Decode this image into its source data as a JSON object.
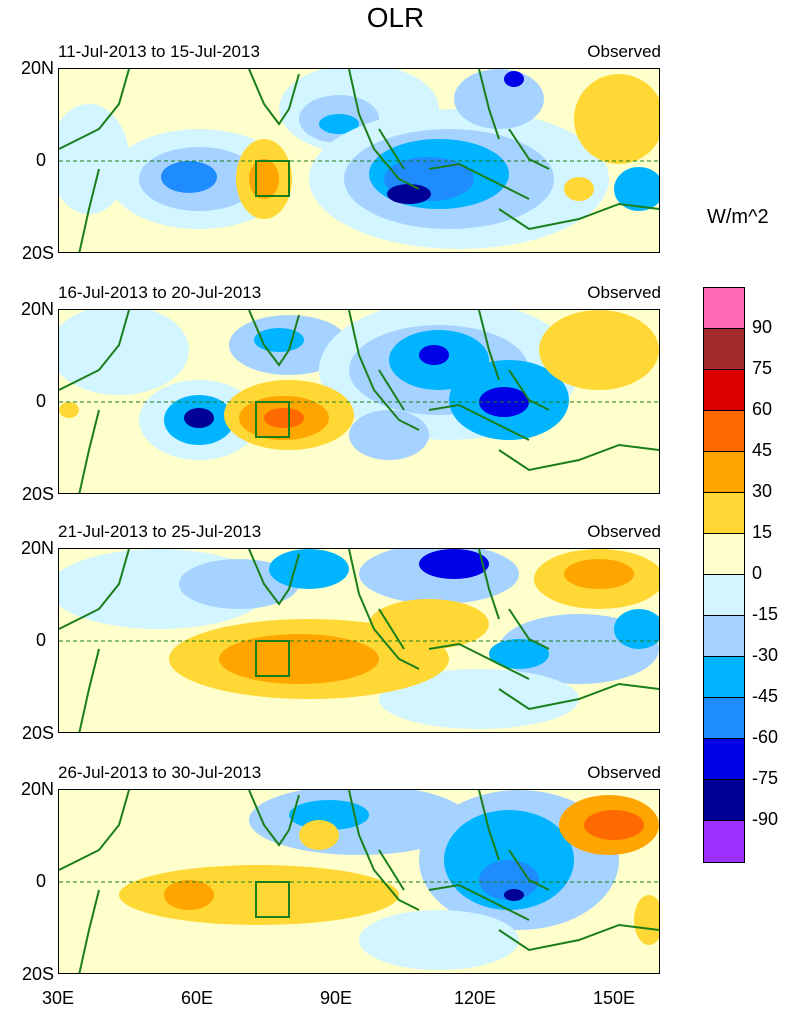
{
  "title": "OLR",
  "units": "W/m^2",
  "lat_labels": [
    "20N",
    "0",
    "20S"
  ],
  "lon_labels": [
    "30E",
    "60E",
    "90E",
    "120E",
    "150E"
  ],
  "panels": [
    {
      "period": "11-Jul-2013 to 15-Jul-2013",
      "tag": "Observed"
    },
    {
      "period": "16-Jul-2013 to 20-Jul-2013",
      "tag": "Observed"
    },
    {
      "period": "21-Jul-2013 to 25-Jul-2013",
      "tag": "Observed"
    },
    {
      "period": "26-Jul-2013 to 30-Jul-2013",
      "tag": "Observed"
    }
  ],
  "colorbar": {
    "colors": [
      "#ff69b4",
      "#a52a2a",
      "#dd0000",
      "#ff6a00",
      "#ffa500",
      "#ffd835",
      "#ffffcc",
      "#d2f5ff",
      "#a5d2ff",
      "#00b4ff",
      "#1e8cff",
      "#0000e6",
      "#000096",
      "#9b30ff"
    ],
    "ticks": [
      "90",
      "75",
      "60",
      "45",
      "30",
      "15",
      "0",
      "-15",
      "-30",
      "-45",
      "-60",
      "-75",
      "-90"
    ]
  },
  "colors": {
    "land_outline": "#1a7f1a",
    "box": "#1a7f1a",
    "equator": "#1a7f1a"
  }
}
